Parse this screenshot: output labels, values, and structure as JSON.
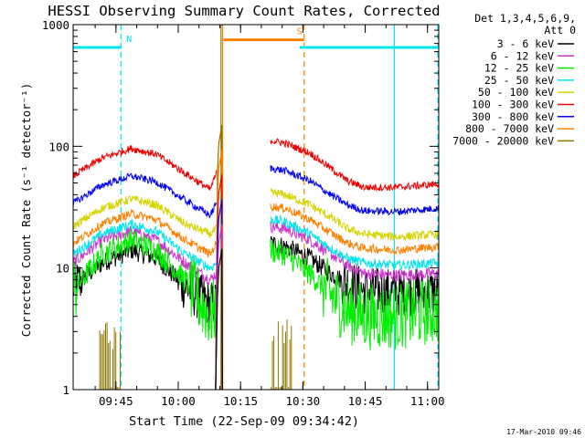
{
  "chart_data": {
    "type": "line",
    "title": "HESSI Observing Summary Count Rates, Corrected",
    "xlabel": "Start Time (22-Sep-09 09:34:42)",
    "ylabel": "Corrected Count Rate (s⁻¹ detector⁻¹)",
    "y_scale": "log",
    "ylim": [
      1,
      1000
    ],
    "x_unit": "minutes after 09:34:42",
    "xlim": [
      0,
      88
    ],
    "x_ticks": [
      {
        "label": "09:45",
        "value": 10.3
      },
      {
        "label": "10:00",
        "value": 25.3
      },
      {
        "label": "10:15",
        "value": 40.3
      },
      {
        "label": "10:30",
        "value": 55.3
      },
      {
        "label": "10:45",
        "value": 70.3
      },
      {
        "label": "11:00",
        "value": 85.3
      }
    ],
    "y_ticks": [
      {
        "label": "1",
        "value": 1
      },
      {
        "label": "10",
        "value": 10
      },
      {
        "label": "100",
        "value": 100
      },
      {
        "label": "1000",
        "value": 1000
      }
    ],
    "legend_title": [
      "Det 1,3,4,5,6,9,",
      "Att 0"
    ],
    "legend_placement": "right",
    "series": [
      {
        "name": "3 - 6 keV",
        "color": "#000000",
        "seg1": [
          [
            0,
            7
          ],
          [
            7,
            11
          ],
          [
            14,
            14
          ],
          [
            20,
            12
          ],
          [
            27,
            7
          ],
          [
            33,
            5
          ],
          [
            34.5,
            5
          ]
        ],
        "seg2": [
          [
            47.5,
            16
          ],
          [
            51,
            15
          ],
          [
            57,
            12
          ],
          [
            62,
            9
          ],
          [
            66,
            7.5
          ],
          [
            70,
            6.5
          ],
          [
            78,
            6.3
          ],
          [
            88,
            6.3
          ]
        ]
      },
      {
        "name": "6 - 12 keV",
        "color": "#cc33cc",
        "seg1": [
          [
            0,
            11
          ],
          [
            7,
            17
          ],
          [
            14,
            20
          ],
          [
            20,
            17
          ],
          [
            27,
            11
          ],
          [
            33,
            8
          ],
          [
            34.5,
            9
          ]
        ],
        "seg2": [
          [
            47.5,
            22
          ],
          [
            51,
            21
          ],
          [
            57,
            17
          ],
          [
            62,
            13
          ],
          [
            66,
            10.5
          ],
          [
            70,
            9
          ],
          [
            78,
            8.7
          ],
          [
            88,
            9
          ]
        ]
      },
      {
        "name": "12 - 25 keV",
        "color": "#00ee00",
        "seg1": [
          [
            0,
            6.5
          ],
          [
            7,
            13
          ],
          [
            14,
            17
          ],
          [
            20,
            14
          ],
          [
            27,
            8
          ],
          [
            33,
            4
          ],
          [
            34.5,
            4.5
          ]
        ],
        "seg2": [
          [
            47.5,
            14
          ],
          [
            51,
            13
          ],
          [
            57,
            9
          ],
          [
            62,
            6
          ],
          [
            66,
            4.5
          ],
          [
            70,
            4
          ],
          [
            78,
            4
          ],
          [
            88,
            4.5
          ]
        ]
      },
      {
        "name": "25 - 50 keV",
        "color": "#00e5ee",
        "seg1": [
          [
            0,
            13
          ],
          [
            7,
            19
          ],
          [
            14,
            23
          ],
          [
            20,
            20
          ],
          [
            27,
            13
          ],
          [
            33,
            10
          ],
          [
            34.5,
            11
          ]
        ],
        "seg2": [
          [
            47.5,
            25
          ],
          [
            51,
            24
          ],
          [
            57,
            19
          ],
          [
            62,
            14.5
          ],
          [
            66,
            12
          ],
          [
            70,
            11
          ],
          [
            78,
            10.5
          ],
          [
            88,
            11
          ]
        ]
      },
      {
        "name": "50 - 100 keV",
        "color": "#d4d400",
        "seg1": [
          [
            0,
            22
          ],
          [
            7,
            31
          ],
          [
            14,
            37
          ],
          [
            20,
            33
          ],
          [
            27,
            23
          ],
          [
            33,
            19
          ],
          [
            34.5,
            21
          ]
        ],
        "seg2": [
          [
            47.5,
            42
          ],
          [
            51,
            40
          ],
          [
            57,
            33
          ],
          [
            62,
            26
          ],
          [
            66,
            21
          ],
          [
            70,
            19
          ],
          [
            78,
            18
          ],
          [
            88,
            19
          ]
        ]
      },
      {
        "name": "100 - 300 keV",
        "color": "#ee0000",
        "seg1": [
          [
            0,
            57
          ],
          [
            7,
            80
          ],
          [
            14,
            96
          ],
          [
            20,
            86
          ],
          [
            27,
            60
          ],
          [
            33,
            44
          ],
          [
            34.5,
            60
          ]
        ],
        "seg2": [
          [
            47.5,
            112
          ],
          [
            51,
            106
          ],
          [
            57,
            88
          ],
          [
            62,
            66
          ],
          [
            66,
            52
          ],
          [
            70,
            46
          ],
          [
            78,
            46
          ],
          [
            88,
            49
          ]
        ]
      },
      {
        "name": "300 - 800 keV",
        "color": "#0000ee",
        "seg1": [
          [
            0,
            34
          ],
          [
            7,
            48
          ],
          [
            14,
            57
          ],
          [
            20,
            51
          ],
          [
            27,
            36
          ],
          [
            33,
            27
          ],
          [
            34.5,
            34
          ]
        ],
        "seg2": [
          [
            47.5,
            66
          ],
          [
            51,
            63
          ],
          [
            57,
            52
          ],
          [
            62,
            40
          ],
          [
            66,
            33
          ],
          [
            70,
            29.5
          ],
          [
            78,
            29
          ],
          [
            88,
            31
          ]
        ]
      },
      {
        "name": "800 - 7000 keV",
        "color": "#ff8000",
        "seg1": [
          [
            0,
            16
          ],
          [
            7,
            23
          ],
          [
            14,
            28
          ],
          [
            20,
            25
          ],
          [
            27,
            17
          ],
          [
            33,
            13
          ],
          [
            34.5,
            16
          ]
        ],
        "seg2": [
          [
            47.5,
            32
          ],
          [
            51,
            31
          ],
          [
            57,
            25
          ],
          [
            62,
            19.5
          ],
          [
            66,
            16
          ],
          [
            70,
            14.5
          ],
          [
            78,
            14
          ],
          [
            88,
            15
          ]
        ]
      },
      {
        "name": "7000 - 20000 keV",
        "color": "#8b7500",
        "bursts1": [
          [
            6.4,
            11.5,
            2
          ]
        ],
        "bursts2": [
          [
            47.6,
            52.8,
            2
          ]
        ]
      }
    ],
    "flare_spike": {
      "x_start": 34.3,
      "x_end": 35.8,
      "peak": 150
    },
    "flags": [
      {
        "label": "N",
        "color": "#00e5ee",
        "level": 650,
        "segments": [
          [
            0,
            11.5
          ],
          [
            54.5,
            88
          ]
        ]
      },
      {
        "label": "S",
        "color": "#ff8000",
        "level": 750,
        "segments": [
          [
            36.2,
            55.6
          ]
        ]
      }
    ],
    "boundaries": [
      {
        "x": 0,
        "color": "#00e5ee",
        "style": "solid"
      },
      {
        "x": 11.5,
        "color": "#00e5ee",
        "style": "dashed"
      },
      {
        "x": 35.6,
        "color": "#8b7500",
        "style": "solid"
      },
      {
        "x": 36.0,
        "color": "#ff8000",
        "style": "solid"
      },
      {
        "x": 55.6,
        "color": "#ff8000",
        "style": "dashed"
      },
      {
        "x": 77.3,
        "color": "#00e5ee",
        "style": "solid"
      },
      {
        "x": 87.8,
        "color": "#00e5ee",
        "style": "dashed"
      }
    ],
    "grid": false
  },
  "footer": {
    "timestamp": "17-Mar-2010 09:46"
  }
}
